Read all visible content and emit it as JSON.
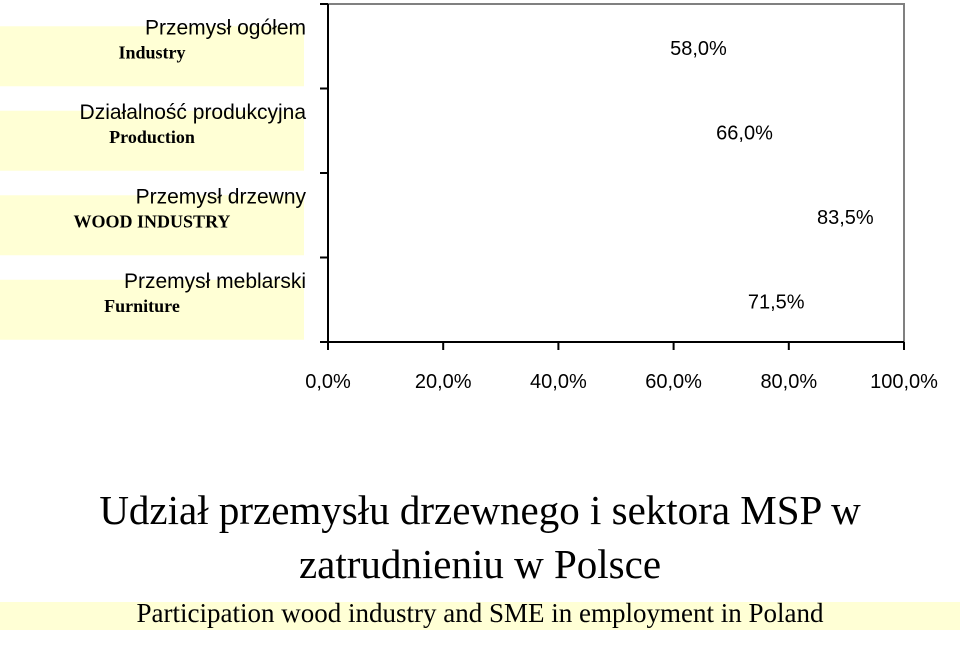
{
  "chart_data": {
    "type": "bar",
    "orientation": "horizontal",
    "categories": [
      {
        "pl": "Przemysł ogółem",
        "en": "Industry"
      },
      {
        "pl": "Działalność produkcyjna",
        "en": "Production"
      },
      {
        "pl": "Przemysł drzewny",
        "en": "WOOD INDUSTRY"
      },
      {
        "pl": "Przemysł meblarski",
        "en": "Furniture"
      }
    ],
    "values": [
      58.0,
      66.0,
      83.5,
      71.5
    ],
    "value_labels": [
      "58,0%",
      "66,0%",
      "83,5%",
      "71,5%"
    ],
    "xlim": [
      0,
      100
    ],
    "x_ticks": [
      0,
      20,
      40,
      60,
      80,
      100
    ],
    "x_tick_labels": [
      "0,0%",
      "20,0%",
      "40,0%",
      "60,0%",
      "80,0%",
      "100,0%"
    ],
    "grid": false,
    "legend": "none",
    "bar_color": "#ccffff",
    "category_band_color": "#ffffd5",
    "title": "Udział przemysłu drzewnego i sektora MSP w zatrudnieniu w Polsce",
    "title_lines": [
      "Udział przemysłu drzewnego i sektora MSP w",
      "zatrudnieniu w Polsce"
    ],
    "subtitle": "Participation wood industry and SME in employment in Poland"
  }
}
